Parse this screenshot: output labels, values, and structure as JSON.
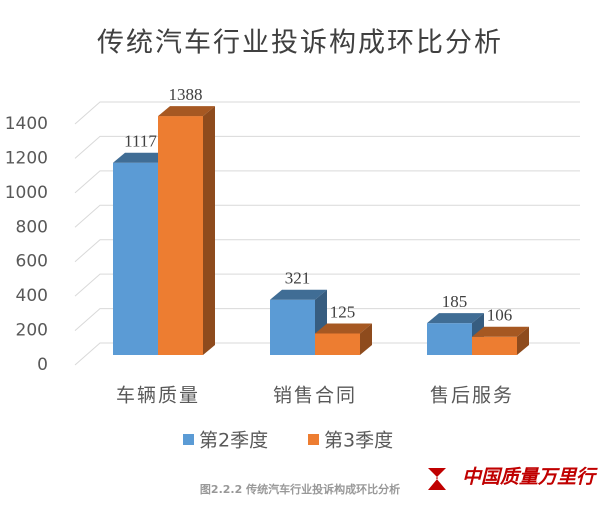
{
  "chart_data": {
    "type": "bar3d",
    "title": "传统汽车行业投诉构成环比分析",
    "categories": [
      "车辆质量",
      "销售合同",
      "售后服务"
    ],
    "series": [
      {
        "name": "第2季度",
        "color": "#5b9bd5",
        "values": [
          1117,
          321,
          185
        ]
      },
      {
        "name": "第3季度",
        "color": "#ed7d31",
        "values": [
          1388,
          125,
          106
        ]
      }
    ],
    "ylim": [
      0,
      1400
    ],
    "yticks": [
      0,
      200,
      400,
      600,
      800,
      1000,
      1200,
      1400
    ],
    "grid": true,
    "legend": "bottom"
  },
  "caption": "图2.2.2  传统汽车行业投诉构成环比分析",
  "watermark": "中国质量万里行"
}
